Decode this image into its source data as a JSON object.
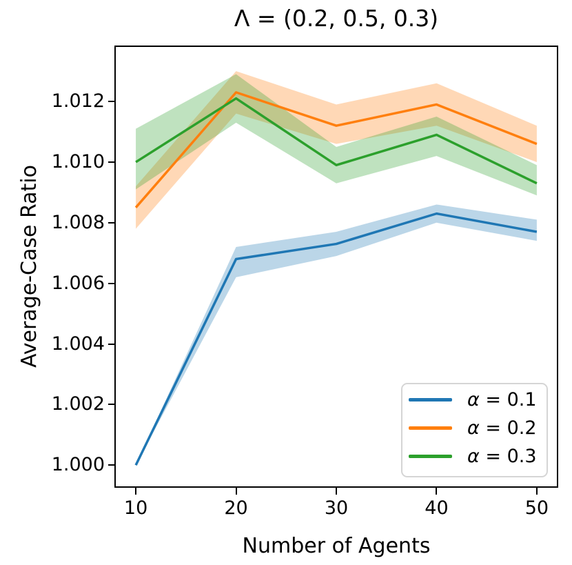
{
  "chart_data": {
    "type": "line",
    "title": "Λ = (0.2, 0.5, 0.3)",
    "xlabel": "Number of Agents",
    "ylabel": "Average-Case Ratio",
    "x": [
      10,
      20,
      30,
      40,
      50
    ],
    "xlim": [
      8,
      52
    ],
    "ylim": [
      0.9993,
      1.0138
    ],
    "xticks": [
      "10",
      "20",
      "30",
      "40",
      "50"
    ],
    "xtick_values": [
      10,
      20,
      30,
      40,
      50
    ],
    "yticks": [
      "1.000",
      "1.002",
      "1.004",
      "1.006",
      "1.008",
      "1.010",
      "1.012"
    ],
    "ytick_values": [
      1.0,
      1.002,
      1.004,
      1.006,
      1.008,
      1.01,
      1.012
    ],
    "grid": false,
    "legend_position": "lower right",
    "band_opacity": 0.3,
    "series": [
      {
        "name": "alpha-0-1",
        "legend_symbol": "α",
        "legend_rest": " = 0.1",
        "color": "#1f77b4",
        "values": [
          1.0,
          1.0068,
          1.0073,
          1.0083,
          1.0077
        ],
        "band_lower": [
          1.0,
          1.0062,
          1.0069,
          1.008,
          1.0074
        ],
        "band_upper": [
          1.0,
          1.0072,
          1.0077,
          1.0086,
          1.0081
        ]
      },
      {
        "name": "alpha-0-2",
        "legend_symbol": "α",
        "legend_rest": " = 0.2",
        "color": "#ff7f0e",
        "values": [
          1.0085,
          1.0123,
          1.0112,
          1.0119,
          1.0106
        ],
        "band_lower": [
          1.0078,
          1.0116,
          1.0106,
          1.0112,
          1.01
        ],
        "band_upper": [
          1.0092,
          1.013,
          1.0119,
          1.0126,
          1.0112
        ]
      },
      {
        "name": "alpha-0-3",
        "legend_symbol": "α",
        "legend_rest": " = 0.3",
        "color": "#2ca02c",
        "values": [
          1.01,
          1.0121,
          1.0099,
          1.0109,
          1.0093
        ],
        "band_lower": [
          1.0091,
          1.0113,
          1.0093,
          1.0102,
          1.0089
        ],
        "band_upper": [
          1.0111,
          1.0129,
          1.0105,
          1.0115,
          1.0099
        ]
      }
    ]
  }
}
